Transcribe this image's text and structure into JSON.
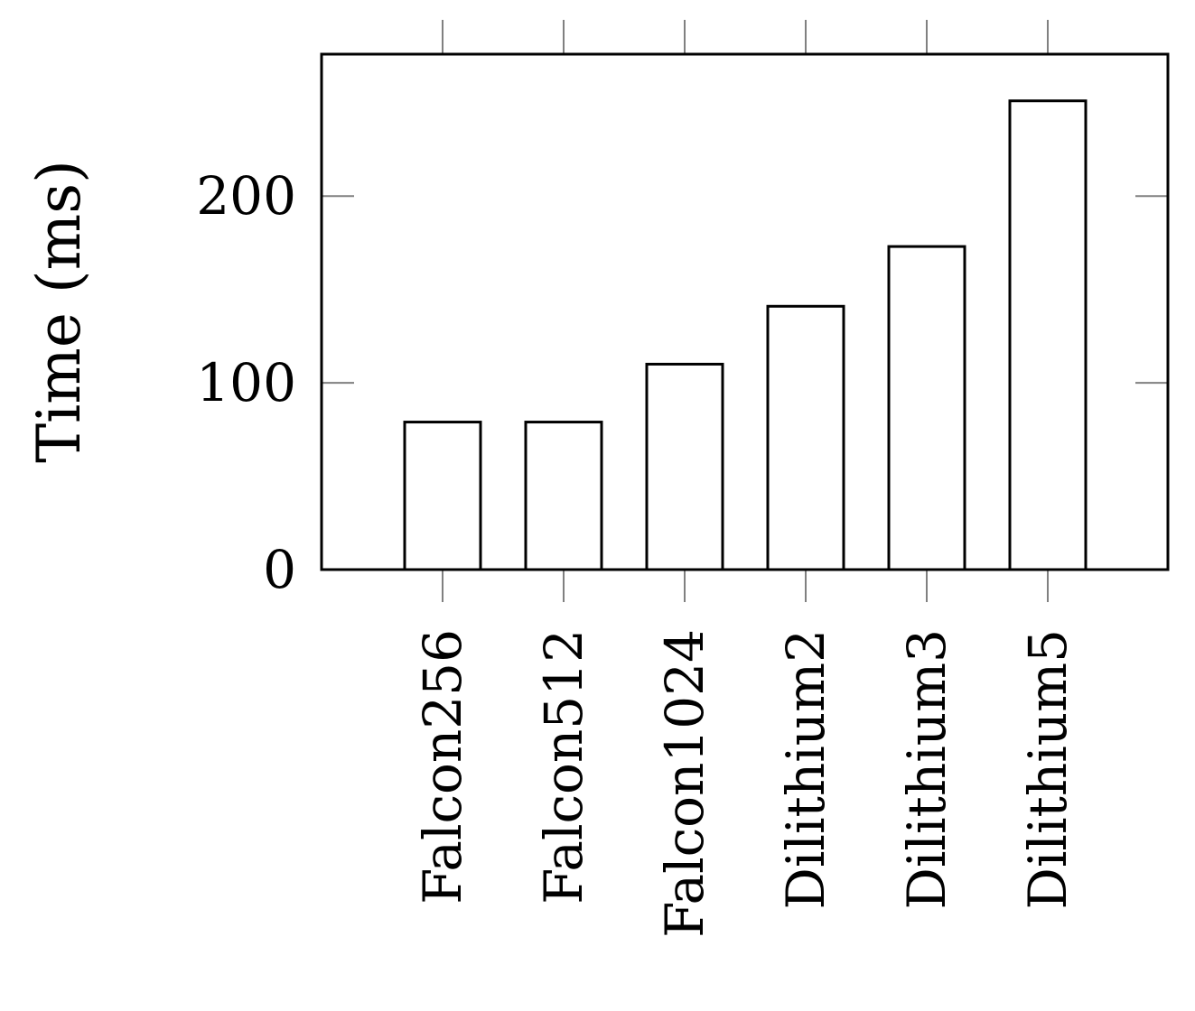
{
  "chart_data": {
    "type": "bar",
    "title": "",
    "xlabel": "",
    "ylabel": "Time (ms)",
    "categories": [
      "Falcon256",
      "Falcon512",
      "Falcon1024",
      "Dilithium2",
      "Dilithium3",
      "Dilithium5"
    ],
    "values": [
      79,
      79,
      110,
      141,
      173,
      251
    ],
    "ylim": [
      0,
      276
    ],
    "yticks": [
      0,
      100,
      200
    ],
    "ytick_labels": [
      "0",
      "100",
      "200"
    ],
    "grid": false,
    "legend": "none",
    "colors": {
      "bar_fill": "#ffffff",
      "bar_stroke": "#000000",
      "axis": "#000000",
      "tick": "#808080"
    }
  }
}
